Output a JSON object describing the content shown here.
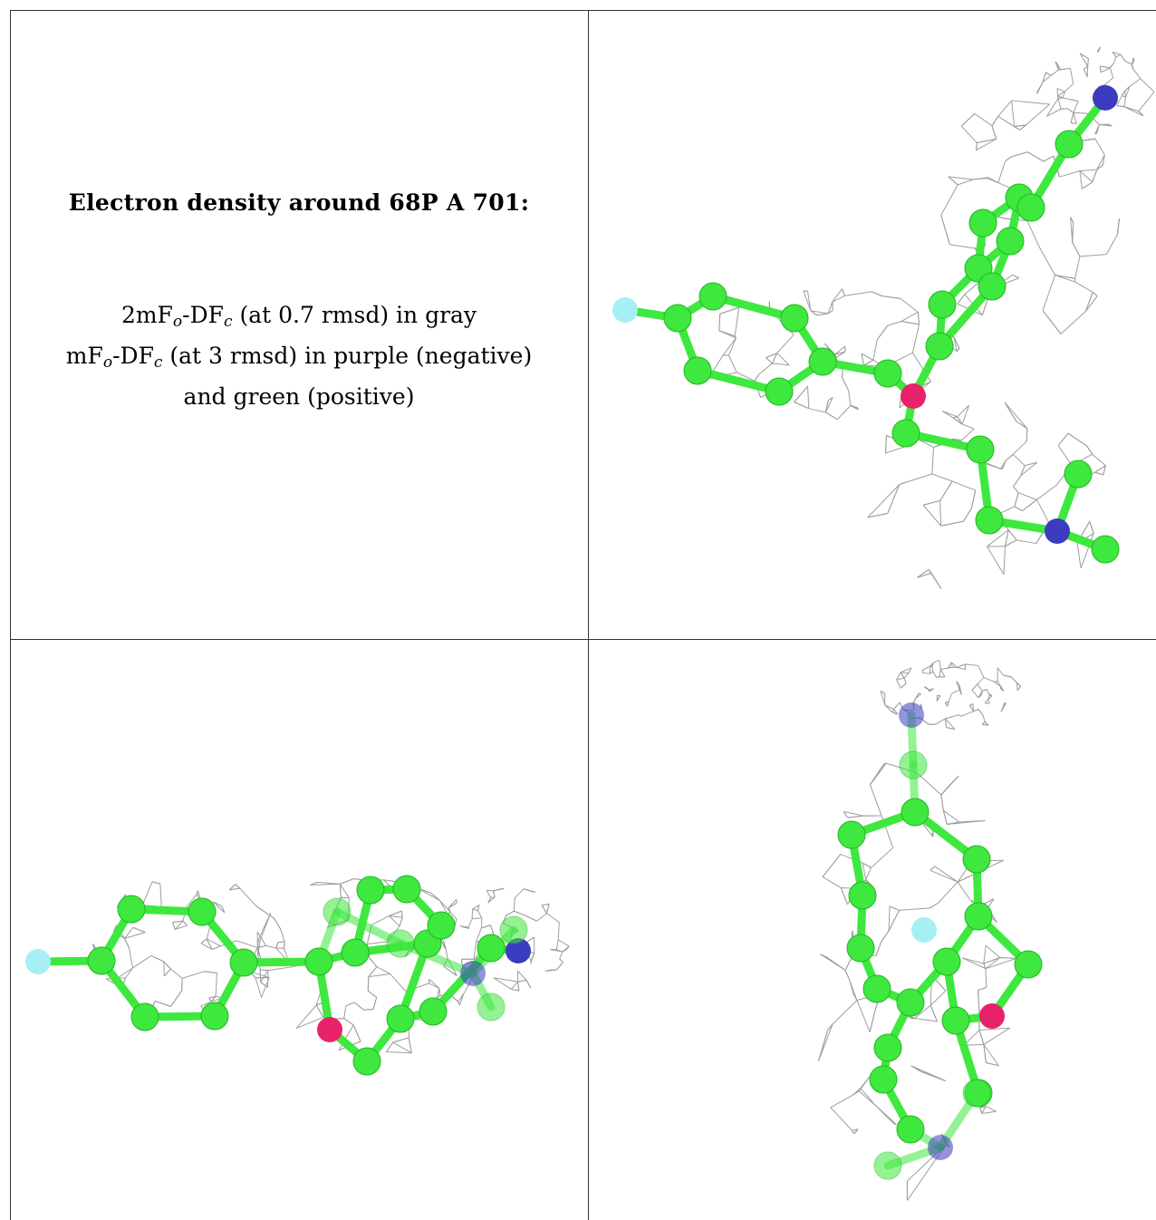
{
  "caption": {
    "title": "Electron density around 68P A 701:",
    "line1": {
      "prefix": "2mF",
      "sub1": "o",
      "mid": "-DF",
      "sub2": "c",
      "suffix": " (at 0.7 rmsd) in gray"
    },
    "line2": {
      "prefix": "mF",
      "sub1": "o",
      "mid": "-DF",
      "sub2": "c",
      "suffix": " (at 3 rmsd) in purple (negative)"
    },
    "line3": "and green (positive)"
  },
  "colors": {
    "carbon": "#3ee83e",
    "carbon_stroke": "#22b622",
    "nitrogen": "#3c3cc0",
    "oxygen": "#e8226a",
    "fluorine": "#a6f0f5",
    "mesh": "#9e9e9e",
    "border": "#333333"
  },
  "views": [
    {
      "name": "view-top-right"
    },
    {
      "name": "view-bottom-left"
    },
    {
      "name": "view-bottom-right"
    }
  ]
}
